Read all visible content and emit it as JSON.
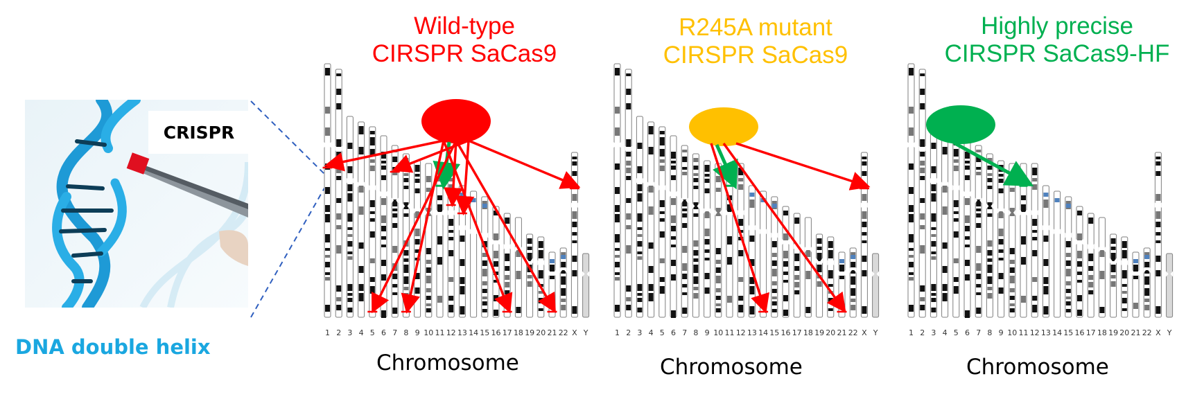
{
  "dna_image": {
    "label": "DNA double helix",
    "label_color": "#1aa7e0",
    "callout": "CRISPR"
  },
  "chromosome_labels": [
    "1",
    "2",
    "3",
    "4",
    "5",
    "6",
    "7",
    "8",
    "9",
    "10",
    "11",
    "12",
    "13",
    "14",
    "15",
    "16",
    "17",
    "18",
    "19",
    "20",
    "21",
    "22",
    "X",
    "Y"
  ],
  "panels": [
    {
      "title_line1": "Wild-type",
      "title_line2": "CIRSPR SaCas9",
      "color": "#ff0000",
      "axis_label": "Chromosome",
      "target_chromosome": "11",
      "off_target_chromosomes": [
        "1",
        "5",
        "7",
        "8",
        "12",
        "13",
        "17",
        "21",
        "X"
      ]
    },
    {
      "title_line1": "R245A mutant",
      "title_line2": "CIRSPR SaCas9",
      "color": "#ffc000",
      "axis_label": "Chromosome",
      "target_chromosome": "11",
      "off_target_chromosomes": [
        "14",
        "21",
        "X"
      ]
    },
    {
      "title_line1": "Highly precise",
      "title_line2": "CIRSPR SaCas9-HF",
      "color": "#00b050",
      "axis_label": "Chromosome",
      "target_chromosome": "11",
      "off_target_chromosomes": []
    }
  ],
  "colors": {
    "on_target": "#00b050",
    "off_target": "#ff0000",
    "band_dark": "#111111",
    "band_mid": "#777777",
    "highlight_band": "#4f81bd"
  }
}
